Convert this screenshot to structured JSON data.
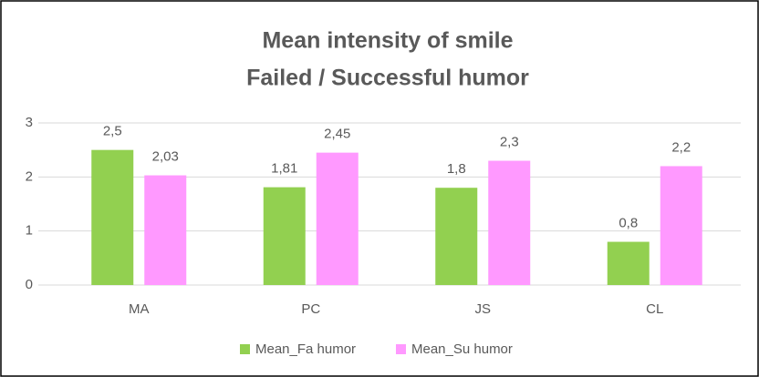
{
  "chart_data": {
    "type": "bar",
    "title": [
      "Mean intensity of smile",
      "Failed / Successful humor"
    ],
    "categories": [
      "MA",
      "PC",
      "JS",
      "CL"
    ],
    "series": [
      {
        "name": "Mean_Fa humor",
        "color": "#92d050",
        "values": [
          2.5,
          1.81,
          1.8,
          0.8
        ],
        "value_labels": [
          "2,5",
          "1,81",
          "1,8",
          "0,8"
        ]
      },
      {
        "name": "Mean_Su humor",
        "color": "#ff99ff",
        "values": [
          2.03,
          2.45,
          2.3,
          2.2
        ],
        "value_labels": [
          "2,03",
          "2,45",
          "2,3",
          "2,2"
        ]
      }
    ],
    "ylim": [
      0,
      3
    ],
    "yticks": [
      0,
      1,
      2,
      3
    ],
    "grid": true,
    "legend": "bottom"
  }
}
